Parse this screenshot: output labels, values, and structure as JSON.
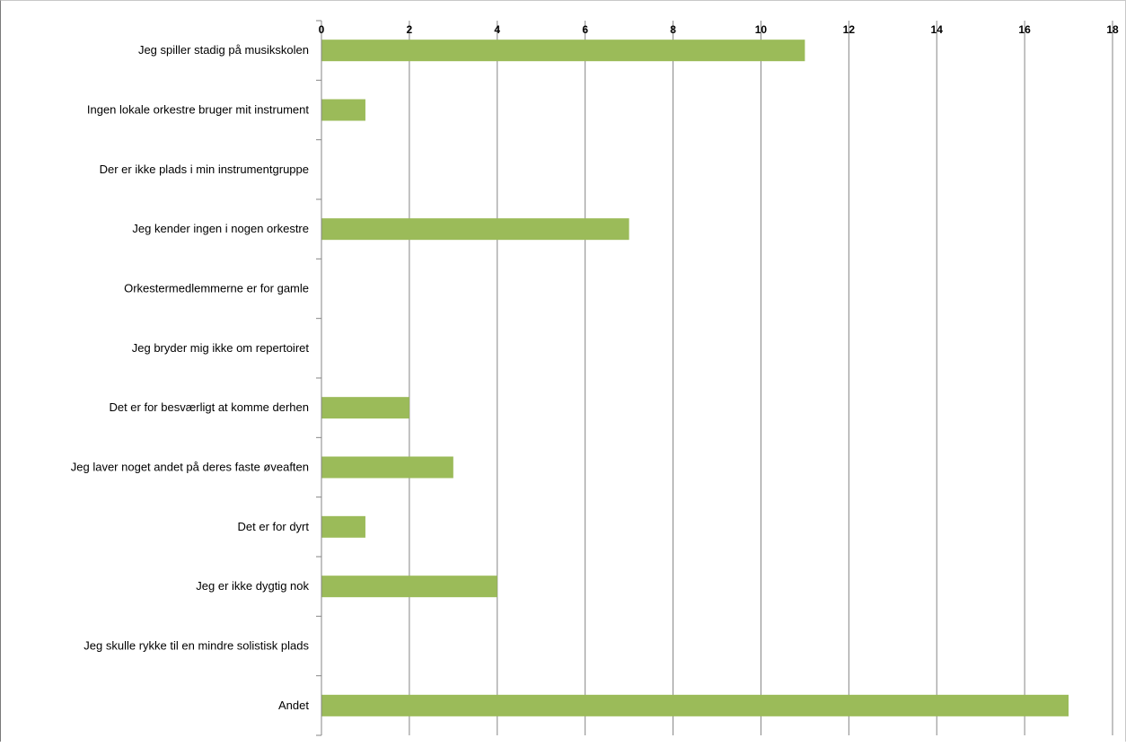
{
  "colors": {
    "bar": "#9bbb59",
    "grid": "#868686",
    "axis": "#868686"
  },
  "chart_data": {
    "type": "bar",
    "orientation": "horizontal",
    "x_axis_position": "top",
    "grid": true,
    "xlim": [
      0,
      18
    ],
    "x_ticks": [
      0,
      2,
      4,
      6,
      8,
      10,
      12,
      14,
      16,
      18
    ],
    "categories": [
      "Jeg spiller stadig på musikskolen",
      "Ingen lokale orkestre bruger mit instrument",
      "Der er ikke plads i min instrumentgruppe",
      "Jeg kender ingen i nogen orkestre",
      "Orkestermedlemmerne er for gamle",
      "Jeg bryder mig ikke om repertoiret",
      "Det er for besværligt at komme derhen",
      "Jeg laver noget andet på deres faste øveaften",
      "Det er for dyrt",
      "Jeg er ikke dygtig nok",
      "Jeg skulle rykke til en mindre solistisk plads",
      "Andet"
    ],
    "values": [
      11,
      1,
      0,
      7,
      0,
      0,
      2,
      3,
      1,
      4,
      0,
      17
    ]
  }
}
